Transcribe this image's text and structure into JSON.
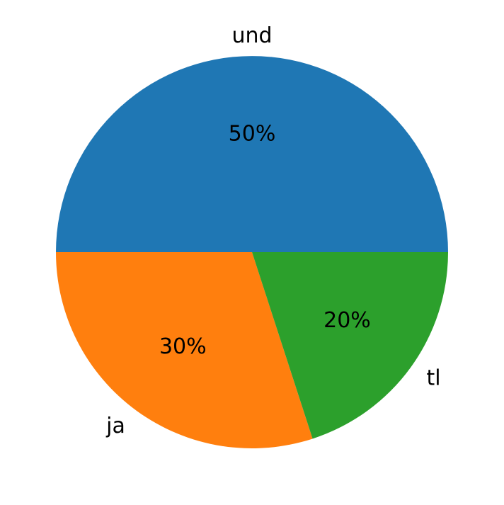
{
  "chart_data": {
    "type": "pie",
    "categories": [
      "und",
      "ja",
      "tl"
    ],
    "values": [
      50,
      30,
      20
    ],
    "value_labels": [
      "50%",
      "30%",
      "20%"
    ],
    "colors": [
      "#1f77b4",
      "#ff7f0e",
      "#2ca02c"
    ]
  }
}
